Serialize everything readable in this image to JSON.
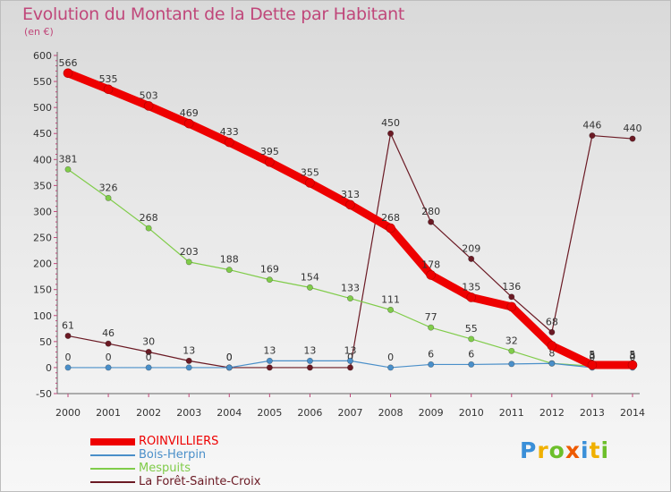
{
  "chart_data": {
    "type": "line",
    "title": "Evolution du Montant de la Dette par Habitant",
    "unit_label": "(en €)",
    "x": [
      "2000",
      "2001",
      "2002",
      "2003",
      "2004",
      "2005",
      "2006",
      "2007",
      "2008",
      "2009",
      "2010",
      "2011",
      "2012",
      "2013",
      "2014"
    ],
    "ylim": [
      -50,
      600
    ],
    "yticks": [
      -50,
      0,
      50,
      100,
      150,
      200,
      250,
      300,
      350,
      400,
      450,
      500,
      550,
      600
    ],
    "grid": false,
    "legend_position": "bottom-left",
    "series": [
      {
        "name": "ROINVILLIERS",
        "color": "#ee0000",
        "values": [
          566,
          535,
          503,
          469,
          433,
          395,
          355,
          313,
          268,
          178,
          135,
          117,
          42,
          5,
          5
        ],
        "labels": [
          "566",
          "535",
          "503",
          "469",
          "433",
          "395",
          "355",
          "313",
          "268",
          "178",
          "135",
          "",
          "",
          "5",
          "5"
        ]
      },
      {
        "name": "Bois-Herpin",
        "color": "#4a8fc9",
        "values": [
          0,
          0,
          0,
          0,
          0,
          13,
          13,
          13,
          0,
          6,
          6,
          7,
          8,
          0,
          0
        ],
        "labels": [
          "0",
          "0",
          "0",
          "",
          "0",
          "13",
          "13",
          "13",
          "0",
          "6",
          "6",
          "",
          "",
          "0",
          "0"
        ]
      },
      {
        "name": "Mespuits",
        "color": "#80cc4a",
        "values": [
          381,
          326,
          268,
          203,
          188,
          169,
          154,
          133,
          111,
          77,
          55,
          32,
          8,
          3,
          3
        ],
        "labels": [
          "381",
          "326",
          "268",
          "203",
          "188",
          "169",
          "154",
          "133",
          "111",
          "77",
          "55",
          "32",
          "8",
          "3",
          "3"
        ]
      },
      {
        "name": "La Forêt-Sainte-Croix",
        "color": "#6b1a24",
        "values": [
          61,
          46,
          30,
          13,
          0,
          0,
          0,
          0,
          450,
          280,
          209,
          136,
          68,
          446,
          440
        ],
        "labels": [
          "61",
          "46",
          "30",
          "13",
          "0",
          "",
          "",
          "0",
          "450",
          "280",
          "209",
          "136",
          "68",
          "446",
          "440"
        ]
      }
    ]
  },
  "brand": {
    "letters": [
      "P",
      "r",
      "o",
      "x",
      "i",
      "t",
      "i"
    ],
    "colors": [
      "#3a8fd8",
      "#f0b000",
      "#6cbf2a",
      "#ee5a00",
      "#3a8fd8",
      "#f0b000",
      "#6cbf2a"
    ]
  }
}
